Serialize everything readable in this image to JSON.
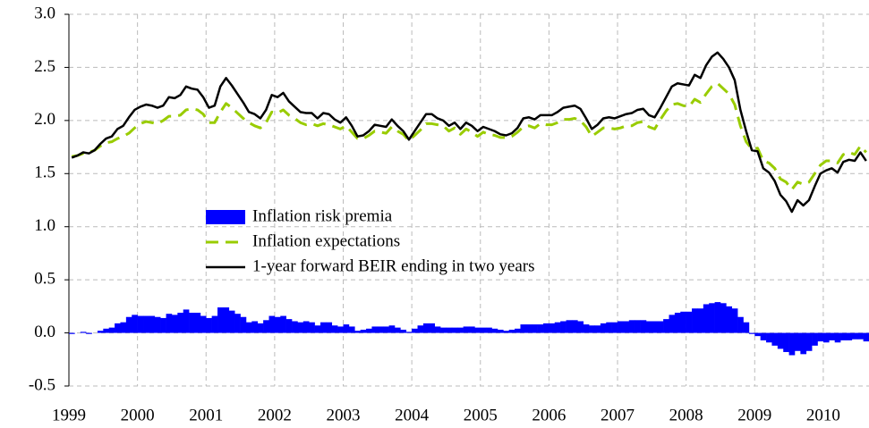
{
  "chart_data": {
    "type": "bar-line",
    "categories": [
      "1999",
      null,
      null,
      null,
      null,
      null,
      null,
      null,
      null,
      null,
      null,
      null,
      "2000",
      null,
      null,
      null,
      null,
      null,
      null,
      null,
      null,
      null,
      null,
      null,
      "2001",
      null,
      null,
      null,
      null,
      null,
      null,
      null,
      null,
      null,
      null,
      null,
      "2002",
      null,
      null,
      null,
      null,
      null,
      null,
      null,
      null,
      null,
      null,
      null,
      "2003",
      null,
      null,
      null,
      null,
      null,
      null,
      null,
      null,
      null,
      null,
      null,
      "2004",
      null,
      null,
      null,
      null,
      null,
      null,
      null,
      null,
      null,
      null,
      null,
      "2005",
      null,
      null,
      null,
      null,
      null,
      null,
      null,
      null,
      null,
      null,
      null,
      "2006",
      null,
      null,
      null,
      null,
      null,
      null,
      null,
      null,
      null,
      null,
      null,
      "2007",
      null,
      null,
      null,
      null,
      null,
      null,
      null,
      null,
      null,
      null,
      null,
      "2008",
      null,
      null,
      null,
      null,
      null,
      null,
      null,
      null,
      null,
      null,
      null,
      "2009",
      null,
      null,
      null,
      null,
      null,
      null,
      null,
      null,
      null,
      null,
      null,
      "2010",
      null,
      null,
      null,
      null,
      null,
      null,
      null
    ],
    "series": [
      {
        "name": "Inflation risk premia",
        "type": "bar",
        "color": "#0000ff",
        "values": [
          -0.01,
          0.0,
          0.01,
          -0.01,
          0.0,
          0.02,
          0.04,
          0.05,
          0.09,
          0.1,
          0.15,
          0.17,
          0.16,
          0.16,
          0.16,
          0.15,
          0.14,
          0.18,
          0.17,
          0.19,
          0.22,
          0.19,
          0.19,
          0.16,
          0.14,
          0.16,
          0.24,
          0.24,
          0.21,
          0.18,
          0.15,
          0.1,
          0.11,
          0.09,
          0.12,
          0.16,
          0.15,
          0.16,
          0.13,
          0.11,
          0.1,
          0.11,
          0.1,
          0.07,
          0.1,
          0.1,
          0.07,
          0.06,
          0.08,
          0.06,
          0.02,
          0.03,
          0.04,
          0.06,
          0.06,
          0.06,
          0.07,
          0.05,
          0.03,
          0.01,
          0.04,
          0.07,
          0.09,
          0.09,
          0.06,
          0.05,
          0.05,
          0.05,
          0.05,
          0.06,
          0.06,
          0.05,
          0.05,
          0.05,
          0.04,
          0.03,
          0.02,
          0.03,
          0.04,
          0.08,
          0.08,
          0.08,
          0.08,
          0.09,
          0.09,
          0.1,
          0.11,
          0.12,
          0.12,
          0.11,
          0.08,
          0.07,
          0.07,
          0.09,
          0.1,
          0.1,
          0.11,
          0.11,
          0.12,
          0.12,
          0.12,
          0.11,
          0.11,
          0.11,
          0.13,
          0.17,
          0.19,
          0.2,
          0.2,
          0.23,
          0.23,
          0.27,
          0.28,
          0.29,
          0.28,
          0.25,
          0.23,
          0.15,
          0.1,
          -0.01,
          -0.03,
          -0.07,
          -0.09,
          -0.12,
          -0.15,
          -0.18,
          -0.21,
          -0.17,
          -0.2,
          -0.17,
          -0.12,
          -0.08,
          -0.09,
          -0.07,
          -0.09,
          -0.07,
          -0.07,
          -0.06,
          -0.06,
          -0.08
        ]
      },
      {
        "name": "Inflation expectations",
        "type": "line",
        "dashed": true,
        "color": "#99cc00",
        "values": [
          1.66,
          1.67,
          1.69,
          1.7,
          1.72,
          1.76,
          1.79,
          1.8,
          1.83,
          1.85,
          1.88,
          1.93,
          1.97,
          1.99,
          1.98,
          1.97,
          2.0,
          2.04,
          2.04,
          2.05,
          2.1,
          2.11,
          2.1,
          2.06,
          1.98,
          1.98,
          2.08,
          2.16,
          2.12,
          2.07,
          2.02,
          1.98,
          1.95,
          1.93,
          1.98,
          2.08,
          2.07,
          2.1,
          2.05,
          2.02,
          1.98,
          1.96,
          1.97,
          1.95,
          1.97,
          1.96,
          1.94,
          1.92,
          1.95,
          1.89,
          1.83,
          1.83,
          1.86,
          1.9,
          1.89,
          1.88,
          1.94,
          1.9,
          1.87,
          1.81,
          1.86,
          1.91,
          1.97,
          1.97,
          1.96,
          1.95,
          1.9,
          1.93,
          1.87,
          1.92,
          1.89,
          1.85,
          1.89,
          1.87,
          1.86,
          1.84,
          1.84,
          1.85,
          1.89,
          1.94,
          1.95,
          1.93,
          1.97,
          1.96,
          1.96,
          1.98,
          2.01,
          2.01,
          2.02,
          2.0,
          1.94,
          1.85,
          1.89,
          1.93,
          1.93,
          1.92,
          1.93,
          1.95,
          1.95,
          1.98,
          1.99,
          1.94,
          1.92,
          2.01,
          2.09,
          2.15,
          2.16,
          2.14,
          2.13,
          2.2,
          2.17,
          2.25,
          2.32,
          2.35,
          2.3,
          2.25,
          2.15,
          1.95,
          1.8,
          1.73,
          1.74,
          1.62,
          1.6,
          1.55,
          1.45,
          1.42,
          1.35,
          1.42,
          1.4,
          1.42,
          1.5,
          1.58,
          1.62,
          1.62,
          1.6,
          1.68,
          1.7,
          1.68,
          1.76,
          1.7
        ]
      },
      {
        "name": "1-year forward BEIR ending in two years",
        "type": "line",
        "dashed": false,
        "color": "#000000",
        "values": [
          1.65,
          1.67,
          1.7,
          1.69,
          1.72,
          1.78,
          1.83,
          1.85,
          1.92,
          1.95,
          2.03,
          2.1,
          2.13,
          2.15,
          2.14,
          2.12,
          2.14,
          2.22,
          2.21,
          2.24,
          2.32,
          2.3,
          2.29,
          2.22,
          2.12,
          2.14,
          2.32,
          2.4,
          2.33,
          2.25,
          2.17,
          2.08,
          2.06,
          2.02,
          2.1,
          2.24,
          2.22,
          2.26,
          2.18,
          2.13,
          2.08,
          2.07,
          2.07,
          2.02,
          2.07,
          2.06,
          2.01,
          1.98,
          2.03,
          1.95,
          1.85,
          1.86,
          1.9,
          1.96,
          1.95,
          1.94,
          2.01,
          1.95,
          1.9,
          1.82,
          1.9,
          1.98,
          2.06,
          2.06,
          2.02,
          2.0,
          1.95,
          1.98,
          1.92,
          1.98,
          1.95,
          1.9,
          1.94,
          1.92,
          1.9,
          1.87,
          1.86,
          1.88,
          1.93,
          2.02,
          2.03,
          2.01,
          2.05,
          2.05,
          2.05,
          2.08,
          2.12,
          2.13,
          2.14,
          2.11,
          2.02,
          1.92,
          1.96,
          2.02,
          2.03,
          2.02,
          2.04,
          2.06,
          2.07,
          2.1,
          2.11,
          2.05,
          2.03,
          2.12,
          2.22,
          2.32,
          2.35,
          2.34,
          2.33,
          2.43,
          2.4,
          2.52,
          2.6,
          2.64,
          2.58,
          2.5,
          2.38,
          2.1,
          1.9,
          1.72,
          1.71,
          1.55,
          1.51,
          1.43,
          1.3,
          1.24,
          1.14,
          1.25,
          1.2,
          1.25,
          1.38,
          1.5,
          1.53,
          1.55,
          1.51,
          1.61,
          1.63,
          1.62,
          1.7,
          1.62
        ]
      }
    ],
    "ylim": [
      -0.5,
      3.0
    ],
    "yticks": [
      -0.5,
      {
        "value": 0,
        "label": "0.0"
      },
      0.5,
      {
        "value": 1,
        "label": "1.0"
      },
      1.5,
      {
        "value": 2,
        "label": "2.0"
      },
      2.5,
      {
        "value": 3,
        "label": "3.0"
      }
    ],
    "grid": true,
    "legend": "center"
  }
}
